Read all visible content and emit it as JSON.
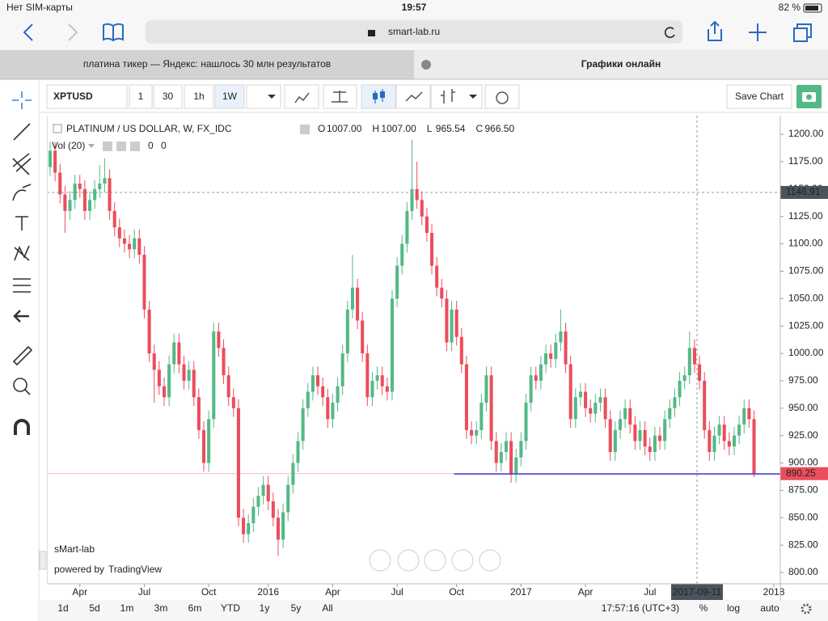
{
  "status_bar": {
    "carrier": "Нет SIM-карты",
    "time": "19:57",
    "battery": "82 %"
  },
  "browser": {
    "url": "smart-lab.ru",
    "tabs": [
      "платина тикер — Яндекс: нашлось 30 млн результатов",
      "Графики онлайн"
    ]
  },
  "toolbar": {
    "symbol": "XPTUSD",
    "intervals": [
      "1",
      "30",
      "1h",
      "1W"
    ],
    "save": "Save Chart"
  },
  "legend": {
    "vol": "Vol (20)",
    "vol_values": [
      "0",
      "0"
    ],
    "ohlc": [
      {
        "key": "O",
        "value": "1007.00"
      },
      {
        "key": "H",
        "value": "1007.00"
      },
      {
        "key": "L",
        "value": "965.54"
      },
      {
        "key": "C",
        "value": "966.50"
      }
    ]
  },
  "watermark": {
    "brand": "sMart-lab",
    "powered": "powered by",
    "provider": "TradingView"
  },
  "bottom_bar": {
    "ranges": [
      "1d",
      "5d",
      "1m",
      "3m",
      "6m",
      "YTD",
      "1y",
      "5y",
      "All"
    ],
    "clock": "17:57:16 (UTC+3)",
    "options": [
      "%",
      "log",
      "auto"
    ]
  },
  "chart_data": {
    "type": "candlestick",
    "title": "PLATINUM / US DOLLAR, W, FX_IDC",
    "up_color": "#53b987",
    "down_color": "#eb4d5c",
    "xlim": [
      -0.65,
      147.3
    ],
    "ylim": [
      789.7,
      1217
    ],
    "xticks": [
      {
        "value": 6,
        "label": "Apr"
      },
      {
        "value": 19,
        "label": "Jul"
      },
      {
        "value": 32,
        "label": "Oct"
      },
      {
        "value": 44,
        "label": "2016"
      },
      {
        "value": 57,
        "label": "Apr"
      },
      {
        "value": 70,
        "label": "Jul"
      },
      {
        "value": 82,
        "label": "Oct"
      },
      {
        "value": 95,
        "label": "2017"
      },
      {
        "value": 108,
        "label": "Apr"
      },
      {
        "value": 121,
        "label": "Jul"
      },
      {
        "value": 146,
        "label": "2018"
      }
    ],
    "yticks": [
      {
        "value": 800,
        "label": "800.00"
      },
      {
        "value": 825,
        "label": "825.00"
      },
      {
        "value": 850,
        "label": "850.00"
      },
      {
        "value": 875,
        "label": "875.00"
      },
      {
        "value": 900,
        "label": "900.00"
      },
      {
        "value": 925,
        "label": "925.00"
      },
      {
        "value": 950,
        "label": "950.00"
      },
      {
        "value": 975,
        "label": "975.00"
      },
      {
        "value": 1000,
        "label": "1000.00"
      },
      {
        "value": 1025,
        "label": "1025.00"
      },
      {
        "value": 1050,
        "label": "1050.00"
      },
      {
        "value": 1075,
        "label": "1075.00"
      },
      {
        "value": 1100,
        "label": "1100.00"
      },
      {
        "value": 1125,
        "label": "1125.00"
      },
      {
        "value": 1150,
        "label": "1150.00"
      },
      {
        "value": 1175,
        "label": "1175.00"
      },
      {
        "value": 1200,
        "label": "1200.00"
      }
    ],
    "last_price": 890.25,
    "crosshair": {
      "x": 130.5,
      "y": 1146.91,
      "x_label": "2017-09-11"
    },
    "drawing": {
      "value": 890,
      "x_start": 81.5,
      "color": "#3b3bd6"
    },
    "values": [
      [
        1170,
        1193,
        1162,
        1185
      ],
      [
        1185,
        1193,
        1157,
        1165
      ],
      [
        1165,
        1173,
        1137,
        1145
      ],
      [
        1145,
        1153,
        1110,
        1130
      ],
      [
        1130,
        1148,
        1122,
        1140
      ],
      [
        1140,
        1163,
        1132,
        1155
      ],
      [
        1155,
        1163,
        1142,
        1150
      ],
      [
        1150,
        1158,
        1122,
        1130
      ],
      [
        1130,
        1148,
        1122,
        1140
      ],
      [
        1140,
        1158,
        1132,
        1150
      ],
      [
        1150,
        1172,
        1142,
        1155
      ],
      [
        1155,
        1178,
        1147,
        1160
      ],
      [
        1160,
        1168,
        1122,
        1130
      ],
      [
        1130,
        1138,
        1107,
        1115
      ],
      [
        1115,
        1123,
        1097,
        1105
      ],
      [
        1105,
        1113,
        1092,
        1100
      ],
      [
        1100,
        1108,
        1087,
        1095
      ],
      [
        1095,
        1113,
        1087,
        1105
      ],
      [
        1105,
        1113,
        1082,
        1090
      ],
      [
        1090,
        1098,
        1032,
        1040
      ],
      [
        1040,
        1048,
        992,
        1000
      ],
      [
        1000,
        1008,
        955,
        985
      ],
      [
        985,
        993,
        962,
        970
      ],
      [
        970,
        978,
        952,
        960
      ],
      [
        960,
        998,
        952,
        990
      ],
      [
        990,
        1018,
        982,
        1010
      ],
      [
        1010,
        1018,
        982,
        990
      ],
      [
        990,
        998,
        967,
        975
      ],
      [
        975,
        993,
        967,
        985
      ],
      [
        985,
        993,
        952,
        960
      ],
      [
        960,
        968,
        922,
        930
      ],
      [
        930,
        938,
        892,
        900
      ],
      [
        900,
        948,
        892,
        940
      ],
      [
        940,
        1028,
        932,
        1020
      ],
      [
        1020,
        1028,
        997,
        1005
      ],
      [
        1005,
        1013,
        972,
        980
      ],
      [
        980,
        988,
        952,
        960
      ],
      [
        960,
        968,
        942,
        950
      ],
      [
        950,
        958,
        842,
        850
      ],
      [
        850,
        858,
        827,
        835
      ],
      [
        835,
        853,
        827,
        845
      ],
      [
        845,
        868,
        837,
        860
      ],
      [
        860,
        878,
        852,
        870
      ],
      [
        870,
        888,
        862,
        880
      ],
      [
        880,
        888,
        857,
        865
      ],
      [
        865,
        873,
        842,
        850
      ],
      [
        850,
        858,
        815,
        830
      ],
      [
        830,
        863,
        822,
        855
      ],
      [
        855,
        888,
        847,
        880
      ],
      [
        880,
        908,
        872,
        900
      ],
      [
        900,
        928,
        892,
        920
      ],
      [
        920,
        958,
        912,
        950
      ],
      [
        950,
        973,
        942,
        965
      ],
      [
        965,
        988,
        957,
        980
      ],
      [
        980,
        988,
        962,
        970
      ],
      [
        970,
        978,
        952,
        960
      ],
      [
        960,
        968,
        932,
        940
      ],
      [
        940,
        963,
        932,
        955
      ],
      [
        955,
        978,
        947,
        970
      ],
      [
        970,
        1008,
        962,
        1000
      ],
      [
        1000,
        1048,
        992,
        1040
      ],
      [
        1040,
        1090,
        1032,
        1060
      ],
      [
        1060,
        1068,
        1022,
        1030
      ],
      [
        1030,
        1038,
        992,
        1000
      ],
      [
        1000,
        1008,
        952,
        960
      ],
      [
        960,
        983,
        952,
        975
      ],
      [
        975,
        988,
        967,
        980
      ],
      [
        980,
        988,
        962,
        970
      ],
      [
        970,
        978,
        957,
        965
      ],
      [
        965,
        1058,
        957,
        1050
      ],
      [
        1050,
        1088,
        1042,
        1080
      ],
      [
        1080,
        1108,
        1072,
        1100
      ],
      [
        1100,
        1138,
        1092,
        1130
      ],
      [
        1130,
        1195,
        1122,
        1150
      ],
      [
        1150,
        1175,
        1132,
        1140
      ],
      [
        1140,
        1148,
        1117,
        1125
      ],
      [
        1125,
        1133,
        1102,
        1110
      ],
      [
        1110,
        1118,
        1072,
        1080
      ],
      [
        1080,
        1088,
        1052,
        1060
      ],
      [
        1060,
        1068,
        1042,
        1050
      ],
      [
        1050,
        1058,
        1002,
        1010
      ],
      [
        1010,
        1048,
        1002,
        1040
      ],
      [
        1040,
        1048,
        1007,
        1015
      ],
      [
        1015,
        1023,
        982,
        990
      ],
      [
        990,
        998,
        922,
        930
      ],
      [
        930,
        938,
        917,
        925
      ],
      [
        925,
        938,
        917,
        930
      ],
      [
        930,
        963,
        922,
        955
      ],
      [
        955,
        988,
        947,
        980
      ],
      [
        980,
        988,
        912,
        920
      ],
      [
        920,
        928,
        892,
        900
      ],
      [
        900,
        918,
        892,
        910
      ],
      [
        910,
        928,
        902,
        920
      ],
      [
        920,
        928,
        882,
        890
      ],
      [
        890,
        913,
        882,
        905
      ],
      [
        905,
        928,
        897,
        920
      ],
      [
        920,
        963,
        912,
        955
      ],
      [
        955,
        988,
        947,
        980
      ],
      [
        980,
        988,
        967,
        975
      ],
      [
        975,
        998,
        967,
        990
      ],
      [
        990,
        1008,
        982,
        1000
      ],
      [
        1000,
        1008,
        987,
        995
      ],
      [
        995,
        1018,
        987,
        1010
      ],
      [
        1010,
        1040,
        1002,
        1020
      ],
      [
        1020,
        1028,
        982,
        990
      ],
      [
        990,
        998,
        932,
        940
      ],
      [
        940,
        968,
        932,
        960
      ],
      [
        960,
        973,
        952,
        965
      ],
      [
        965,
        973,
        942,
        950
      ],
      [
        950,
        958,
        937,
        945
      ],
      [
        945,
        963,
        937,
        955
      ],
      [
        955,
        968,
        947,
        960
      ],
      [
        960,
        968,
        932,
        940
      ],
      [
        940,
        948,
        902,
        910
      ],
      [
        910,
        938,
        902,
        930
      ],
      [
        930,
        948,
        922,
        940
      ],
      [
        940,
        958,
        932,
        950
      ],
      [
        950,
        958,
        927,
        935
      ],
      [
        935,
        943,
        912,
        920
      ],
      [
        920,
        938,
        912,
        930
      ],
      [
        930,
        938,
        907,
        915
      ],
      [
        915,
        923,
        902,
        910
      ],
      [
        910,
        933,
        902,
        925
      ],
      [
        925,
        933,
        912,
        920
      ],
      [
        920,
        948,
        912,
        940
      ],
      [
        940,
        958,
        932,
        950
      ],
      [
        950,
        968,
        942,
        960
      ],
      [
        960,
        983,
        952,
        975
      ],
      [
        975,
        988,
        967,
        980
      ],
      [
        980,
        1020,
        972,
        1005
      ],
      [
        1005,
        1013,
        982,
        990
      ],
      [
        990,
        998,
        967,
        975
      ],
      [
        975,
        983,
        922,
        930
      ],
      [
        930,
        938,
        902,
        910
      ],
      [
        910,
        933,
        902,
        925
      ],
      [
        925,
        943,
        917,
        935
      ],
      [
        935,
        943,
        912,
        920
      ],
      [
        920,
        928,
        907,
        915
      ],
      [
        915,
        933,
        907,
        925
      ],
      [
        925,
        943,
        917,
        935
      ],
      [
        935,
        958,
        927,
        950
      ],
      [
        950,
        958,
        932,
        940
      ],
      [
        940,
        948,
        887,
        890.25
      ]
    ]
  }
}
